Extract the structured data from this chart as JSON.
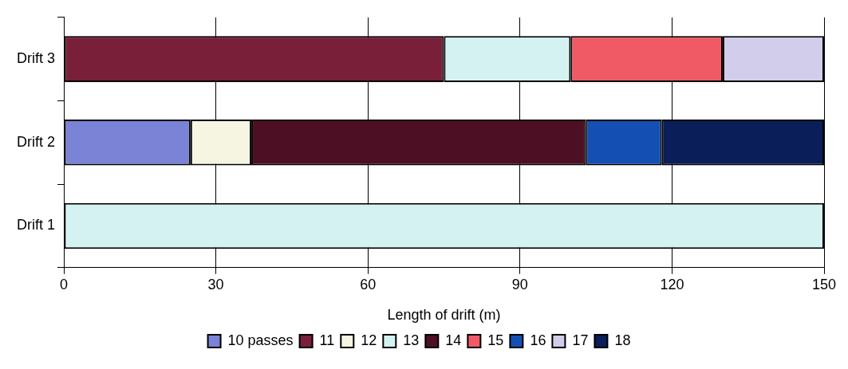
{
  "chart_data": {
    "type": "bar",
    "orientation": "horizontal",
    "stacked": true,
    "xlabel": "Length of drift (m)",
    "categories": [
      "Drift 3",
      "Drift 2",
      "Drift 1"
    ],
    "series": [
      {
        "name": "10 passes",
        "color": "#7b83d6",
        "values": [
          null,
          25,
          null
        ]
      },
      {
        "name": "11",
        "color": "#7a1f3a",
        "values": [
          75,
          null,
          null
        ]
      },
      {
        "name": "12",
        "color": "#f5f5e1",
        "values": [
          null,
          12,
          null
        ]
      },
      {
        "name": "13",
        "color": "#d5f2f2",
        "values": [
          25,
          null,
          150
        ]
      },
      {
        "name": "14",
        "color": "#4d0f24",
        "values": [
          null,
          66,
          null
        ]
      },
      {
        "name": "15",
        "color": "#f05a64",
        "values": [
          30,
          null,
          null
        ]
      },
      {
        "name": "16",
        "color": "#1450b4",
        "values": [
          null,
          15,
          null
        ]
      },
      {
        "name": "17",
        "color": "#d2cdea",
        "values": [
          20,
          null,
          null
        ]
      },
      {
        "name": "18",
        "color": "#0a1e5a",
        "values": [
          null,
          32,
          null
        ]
      }
    ],
    "xlim": [
      0,
      150
    ],
    "xticks": [
      0,
      30,
      60,
      90,
      120,
      150
    ],
    "grid": "x",
    "legend": "bottom"
  }
}
